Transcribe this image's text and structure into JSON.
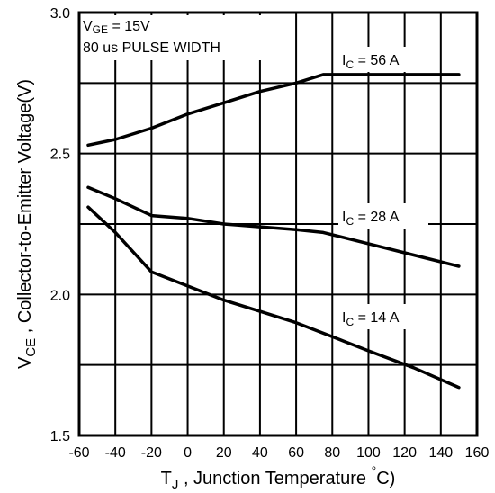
{
  "chart_data": {
    "type": "line",
    "title": "",
    "xlabel": {
      "symbol": "T",
      "subscript": "J",
      "text": " , Junction Temperature ",
      "degree": "°",
      "unit": "C)"
    },
    "ylabel": {
      "symbol": "V",
      "subscript": "CE",
      "text": " , Collector-to-Emitter Voltage(V)"
    },
    "xlim": [
      -60,
      160
    ],
    "ylim": [
      1.5,
      3.0
    ],
    "x_ticks": [
      "-60",
      "-40",
      "-20",
      "0",
      "20",
      "40",
      "60",
      "80",
      "100",
      "120",
      "140",
      "160"
    ],
    "y_ticks": [
      "1.5",
      "2.0",
      "2.5",
      "3.0"
    ],
    "grid": true,
    "annotations": [
      {
        "main": "V",
        "sub": "GE",
        "rest": " = 15V"
      },
      {
        "text": "80 us PULSE WIDTH"
      }
    ],
    "series": [
      {
        "name": "56 A",
        "label_prefix": "I",
        "label_sub": "C",
        "label_rest": " = 56 A",
        "x": [
          -55,
          -40,
          -20,
          0,
          20,
          40,
          60,
          75,
          100,
          125,
          150
        ],
        "y": [
          2.53,
          2.55,
          2.59,
          2.64,
          2.68,
          2.72,
          2.75,
          2.78,
          2.78,
          2.78,
          2.78
        ]
      },
      {
        "name": "28 A",
        "label_prefix": "I",
        "label_sub": "C",
        "label_rest": " = 28 A",
        "x": [
          -55,
          -40,
          -20,
          0,
          20,
          40,
          60,
          75,
          100,
          125,
          150
        ],
        "y": [
          2.38,
          2.34,
          2.28,
          2.27,
          2.25,
          2.24,
          2.23,
          2.22,
          2.18,
          2.14,
          2.1
        ]
      },
      {
        "name": "14 A",
        "label_prefix": "I",
        "label_sub": "C",
        "label_rest": " = 14 A",
        "x": [
          -55,
          -40,
          -20,
          0,
          20,
          40,
          60,
          80,
          100,
          125,
          150
        ],
        "y": [
          2.31,
          2.22,
          2.08,
          2.03,
          1.98,
          1.94,
          1.9,
          1.85,
          1.8,
          1.74,
          1.67
        ]
      }
    ]
  }
}
